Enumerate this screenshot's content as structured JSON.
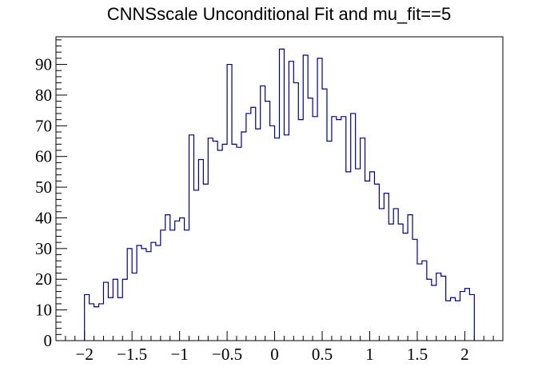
{
  "chart_data": {
    "type": "histogram",
    "title": "CNNSscale Unconditional Fit and mu_fit==5",
    "xlabel": "",
    "ylabel": "",
    "xlim": [
      -2.3,
      2.4
    ],
    "ylim": [
      0,
      99
    ],
    "bin_edges_start": -2.0,
    "bin_width": 0.05,
    "series": [
      {
        "color": "#000080",
        "values": [
          15,
          12,
          11,
          12,
          19,
          14,
          20,
          14,
          20,
          30,
          22,
          31,
          30,
          29,
          32,
          31,
          36,
          41,
          36,
          39,
          40,
          36,
          67,
          49,
          59,
          51,
          66,
          65,
          62,
          64,
          90,
          64,
          63,
          68,
          74,
          76,
          69,
          83,
          78,
          70,
          66,
          95,
          67,
          91,
          84,
          72,
          93,
          79,
          73,
          92,
          82,
          65,
          73,
          72,
          73,
          55,
          74,
          56,
          66,
          52,
          55,
          51,
          43,
          48,
          38,
          43,
          38,
          35,
          41,
          33,
          25,
          26,
          20,
          18,
          22,
          21,
          13,
          14,
          13,
          16,
          17,
          15
        ]
      }
    ],
    "x_ticks": [
      "−2",
      "−1.5",
      "−1",
      "−0.5",
      "0",
      "0.5",
      "1",
      "1.5",
      "2"
    ],
    "x_tick_values": [
      -2,
      -1.5,
      -1,
      -0.5,
      0,
      0.5,
      1,
      1.5,
      2
    ],
    "y_ticks": [
      "0",
      "10",
      "20",
      "30",
      "40",
      "50",
      "60",
      "70",
      "80",
      "90"
    ],
    "y_tick_values": [
      0,
      10,
      20,
      30,
      40,
      50,
      60,
      70,
      80,
      90
    ],
    "legend": "none",
    "grid": false
  }
}
